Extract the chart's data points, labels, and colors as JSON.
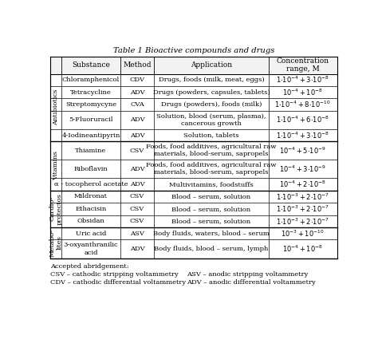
{
  "title": "Table 1 Bioactive compounds and drugs",
  "headers": [
    "Substance",
    "Method",
    "Application",
    "Concentration\nrange, M"
  ],
  "groups": [
    {
      "label": "Antibiotics",
      "rows": [
        [
          "Chloramphenicol",
          "CDV",
          "Drugs, foods (milk, meat, eggs)",
          "$1{\\cdot}10^{-4} + 3{\\cdot}10^{-8}$"
        ],
        [
          "Tetracycline",
          "ADV",
          "Drugs (powders, capsules, tablets)",
          "$10^{-4} + 10^{-8}$"
        ],
        [
          "Streptomycyne",
          "CVA",
          "Drugs (powders), foods (milk)",
          "$1{\\cdot}10^{-4} + 8{\\cdot}10^{-10}$"
        ],
        [
          "5-Fluoruracil",
          "ADV",
          "Solution, blood (serum, plasma),\ncancerous growth",
          "$1{\\cdot}10^{-4} + 6{\\cdot}10^{-8}$"
        ],
        [
          "4-Iodineantipyrin",
          "ADV",
          "Solution, tablets",
          "$1{\\cdot}10^{-4} + 3{\\cdot}10^{-8}$"
        ]
      ]
    },
    {
      "label": "Vitamins",
      "rows": [
        [
          "Thiamine",
          "CSV",
          "Foods, food additives, agricultural raw\nmaterials, blood-serum, sapropels",
          "$10^{-4} + 5{\\cdot}10^{-9}$"
        ],
        [
          "Riboflavin",
          "ADV",
          "Foods, food additives, agricultural raw\nmaterials, blood-serum, sapropels",
          "$10^{-4} + 3{\\cdot}10^{-9}$"
        ],
        [
          "α - tocopherol acetate",
          "ADV",
          "Multivitamins, foodstuffs",
          "$10^{-4} + 2{\\cdot}10^{-8}$"
        ]
      ]
    },
    {
      "label": "Cardio-\nprotectos",
      "rows": [
        [
          "Mildronat",
          "CSV",
          "Blood – serum, solution",
          "$1{\\cdot}10^{-3} + 2{\\cdot}10^{-7}$"
        ],
        [
          "Ethacisin",
          "CSV",
          "Blood – serum, solution",
          "$1{\\cdot}10^{-3} + 2{\\cdot}10^{-7}$"
        ],
        [
          "Obsidan",
          "CSV",
          "Blood – serum, solution",
          "$1{\\cdot}10^{-3} + 2{\\cdot}10^{-7}$"
        ]
      ]
    },
    {
      "label": "Metabo-\nlites",
      "rows": [
        [
          "Uric acid",
          "ASV",
          "Body fluids, waters, blood – serum",
          "$10^{-3} + 10^{-10}$"
        ],
        [
          "3-oxyanthranilic\nacid",
          "ADV",
          "Body fluids, blood – serum, lymph",
          "$10^{-4} + 10^{-8}$"
        ]
      ]
    }
  ],
  "footnote_lines": [
    [
      "Accepted abridgement:"
    ],
    [
      "CSV – cathodic stripping voltammetry",
      "ASV – anodic stripping voltammetry"
    ],
    [
      "CDV – cathodic differential voltammetry",
      "ADV – anodic differential voltammetry"
    ]
  ],
  "bg_color": "#ffffff",
  "line_color": "#000000",
  "text_color": "#000000"
}
